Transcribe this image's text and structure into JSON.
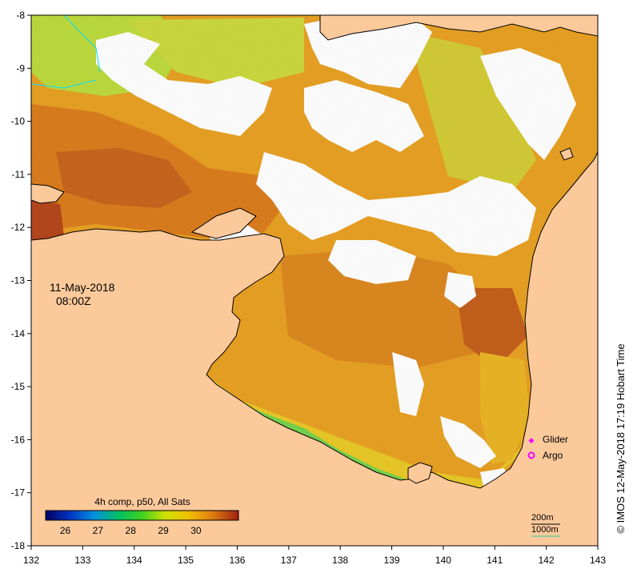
{
  "map": {
    "date_label": "11-May-2018",
    "time_label": "08:00Z",
    "credit": "© IMOS 12-May-2018 17:19 Hobart Time",
    "colorbar": {
      "title": "4h comp, p50, All Sats",
      "tick_labels": [
        "26",
        "27",
        "28",
        "29",
        "30"
      ],
      "tick_values": [
        26,
        27,
        28,
        29,
        30
      ],
      "range": [
        25.4,
        31.3
      ]
    },
    "legend": {
      "glider_label": "Glider",
      "argo_label": "Argo",
      "glider_color": "#ff00ff",
      "argo_color": "#ff00ff"
    },
    "contours": {
      "label_200": "200m",
      "label_1000": "1000m"
    },
    "axes": {
      "x_tick_labels": [
        "132",
        "133",
        "134",
        "135",
        "136",
        "137",
        "138",
        "139",
        "140",
        "141",
        "142",
        "143"
      ],
      "x_tick_values": [
        132,
        133,
        134,
        135,
        136,
        137,
        138,
        139,
        140,
        141,
        142,
        143
      ],
      "y_tick_labels": [
        "-8",
        "-9",
        "-10",
        "-11",
        "-12",
        "-13",
        "-14",
        "-15",
        "-16",
        "-17",
        "-18"
      ],
      "y_tick_values": [
        -8,
        -9,
        -10,
        -11,
        -12,
        -13,
        -14,
        -15,
        -16,
        -17,
        -18
      ],
      "lon_range": [
        132,
        143
      ],
      "lat_range": [
        -18,
        -8
      ]
    },
    "colors": {
      "land": "#fcc99b",
      "cloud": "#ffffff",
      "sst_warm": "#e08a10",
      "sst_hot": "#c8560c",
      "sst_mid": "#f0c000",
      "sst_green": "#9ad020",
      "sst_cool": "#00b050",
      "sst_cold": "#0060d0",
      "sst_coldest": "#00007a"
    }
  }
}
